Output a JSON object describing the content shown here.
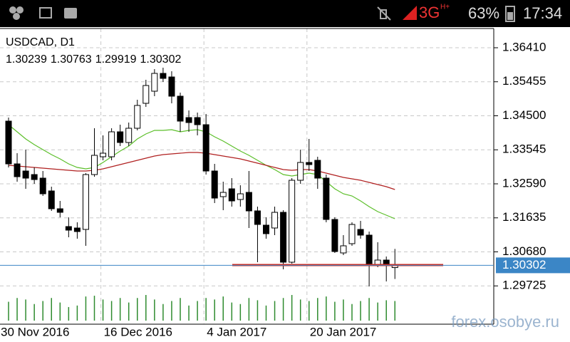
{
  "status_bar": {
    "network": "3G",
    "network_sub": "H+",
    "battery": "63%",
    "time": "17:34"
  },
  "chart_data": {
    "type": "candlestick",
    "title": "USDCAD, D1",
    "categories": [
      "30 Nov 2016",
      null,
      null,
      null,
      null,
      null,
      null,
      null,
      null,
      null,
      null,
      null,
      "16 Dec 2016",
      null,
      null,
      null,
      null,
      null,
      null,
      null,
      null,
      null,
      null,
      null,
      "4 Jan 2017",
      null,
      null,
      null,
      null,
      null,
      null,
      null,
      null,
      null,
      null,
      null,
      "20 Jan 2017",
      null,
      null,
      null,
      null,
      null,
      null,
      null,
      null,
      null
    ],
    "open": [
      1.3435,
      1.3315,
      1.3295,
      1.3285,
      1.3275,
      1.3239,
      1.3189,
      1.3139,
      1.3135,
      1.3131,
      1.3285,
      1.3335,
      1.3335,
      1.3405,
      1.3375,
      1.3415,
      1.3485,
      1.3519,
      1.3569,
      1.3559,
      1.3505,
      1.3445,
      1.3445,
      1.3425,
      1.3295,
      1.3223,
      1.3245,
      1.3215,
      1.3235,
      1.3183,
      1.3143,
      1.3135,
      1.3179,
      1.3039,
      1.3269,
      1.3319,
      1.3325,
      1.3275,
      1.3159,
      1.3065,
      1.3091,
      1.3131,
      1.3115,
      1.3031,
      1.3045,
      1.30239
    ],
    "high": [
      1.3445,
      1.3345,
      1.3355,
      1.3305,
      1.3295,
      1.3251,
      1.3211,
      1.3165,
      1.3151,
      1.3289,
      1.3415,
      1.3395,
      1.3415,
      1.3425,
      1.3431,
      1.3495,
      1.3551,
      1.3581,
      1.3585,
      1.3575,
      1.3515,
      1.3465,
      1.3459,
      1.3455,
      1.3315,
      1.3265,
      1.3275,
      1.3255,
      1.3295,
      1.3195,
      1.3165,
      1.3195,
      1.3185,
      1.3275,
      1.3355,
      1.3385,
      1.3335,
      1.3285,
      1.3165,
      1.3115,
      1.3151,
      1.3155,
      1.3125,
      1.3095,
      1.3055,
      1.30763
    ],
    "low": [
      1.3305,
      1.3265,
      1.3245,
      1.3259,
      1.3225,
      1.3183,
      1.3165,
      1.3109,
      1.3105,
      1.3085,
      1.3279,
      1.3325,
      1.3325,
      1.3365,
      1.3365,
      1.3409,
      1.3475,
      1.3505,
      1.3545,
      1.3485,
      1.3405,
      1.3405,
      1.3395,
      1.3285,
      1.3205,
      1.3185,
      1.3195,
      1.3195,
      1.3135,
      1.3039,
      1.3105,
      1.3115,
      1.3019,
      1.3035,
      1.3259,
      1.3295,
      1.3245,
      1.3151,
      1.3065,
      1.3059,
      1.3085,
      1.3105,
      1.2971,
      1.3025,
      1.2985,
      1.29919
    ],
    "close": [
      1.3315,
      1.3279,
      1.3275,
      1.3271,
      1.3231,
      1.3189,
      1.3179,
      1.3129,
      1.3125,
      1.3285,
      1.3339,
      1.3345,
      1.3405,
      1.3375,
      1.3415,
      1.3479,
      1.3535,
      1.3569,
      1.3555,
      1.3505,
      1.3435,
      1.3431,
      1.3425,
      1.3295,
      1.3219,
      1.3235,
      1.3211,
      1.3231,
      1.3183,
      1.3145,
      1.3119,
      1.3179,
      1.3039,
      1.3269,
      1.3319,
      1.3313,
      1.3275,
      1.3159,
      1.3069,
      1.3085,
      1.3145,
      1.3115,
      1.3031,
      1.3045,
      1.3031,
      1.30302
    ],
    "volume": [
      25,
      30,
      28,
      22,
      26,
      30,
      24,
      18,
      20,
      32,
      33,
      28,
      26,
      30,
      24,
      30,
      34,
      28,
      22,
      26,
      30,
      20,
      26,
      30,
      28,
      32,
      24,
      22,
      30,
      27,
      20,
      26,
      30,
      34,
      28,
      26,
      30,
      32,
      25,
      28,
      22,
      26,
      30,
      24,
      27,
      26
    ],
    "volume_color": "#2e8b2e",
    "moving_averages": [
      {
        "color": "#5cbf2a",
        "values": [
          1.3425,
          1.3405,
          1.3385,
          1.3369,
          1.3355,
          1.3341,
          1.3329,
          1.3315,
          1.3305,
          1.3301,
          1.3305,
          1.3319,
          1.3335,
          1.3351,
          1.3365,
          1.3385,
          1.3399,
          1.3409,
          1.3409,
          1.3411,
          1.3405,
          1.3409,
          1.3411,
          1.3405,
          1.3391,
          1.3379,
          1.3365,
          1.3351,
          1.3339,
          1.3325,
          1.3311,
          1.3299,
          1.3285,
          1.3281,
          1.3285,
          1.3289,
          1.3285,
          1.3265,
          1.3245,
          1.3231,
          1.3225,
          1.3211,
          1.3195,
          1.3181,
          1.3171,
          1.3161
        ]
      },
      {
        "color": "#b02020",
        "values": [
          1.3311,
          1.3309,
          1.3307,
          1.3305,
          1.3303,
          1.3301,
          1.3299,
          1.3297,
          1.3295,
          1.3295,
          1.3297,
          1.3301,
          1.3307,
          1.3313,
          1.3319,
          1.3325,
          1.3331,
          1.3337,
          1.3341,
          1.3343,
          1.3345,
          1.3347,
          1.3347,
          1.3345,
          1.3341,
          1.3337,
          1.3333,
          1.3329,
          1.3323,
          1.3317,
          1.3311,
          1.3305,
          1.3299,
          1.3297,
          1.3299,
          1.3299,
          1.3295,
          1.3289,
          1.3283,
          1.3277,
          1.3273,
          1.3269,
          1.3263,
          1.3257,
          1.3251,
          1.3243
        ]
      }
    ],
    "level": {
      "value": 1.3031,
      "color": "#d42a1e"
    },
    "bid": {
      "value": 1.30302,
      "color": "#3b86c6"
    },
    "ylim": [
      1.2865,
      1.3695
    ],
    "yticks": [
      {
        "value": 1.3641,
        "label": "1.36410"
      },
      1.35455,
      {
        "value": 1.345,
        "label": "1.34500"
      },
      1.33545,
      {
        "value": 1.3259,
        "label": "1.32590"
      },
      1.31635,
      {
        "value": 1.3068,
        "label": "1.30680"
      },
      1.29725
    ],
    "grid": true
  },
  "watermark": "forex.osobye.ru"
}
